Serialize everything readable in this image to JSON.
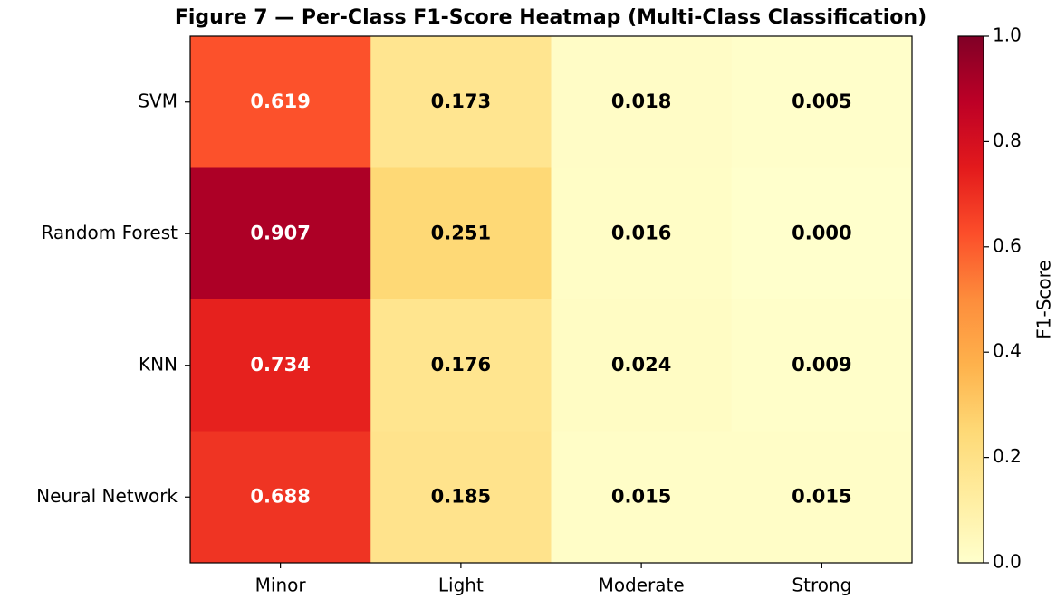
{
  "chart_data": {
    "type": "heatmap",
    "title": "Figure 7 — Per-Class F1-Score Heatmap (Multi-Class Classification)",
    "x_categories": [
      "Minor",
      "Light",
      "Moderate",
      "Strong"
    ],
    "y_categories": [
      "SVM",
      "Random Forest",
      "KNN",
      "Neural Network"
    ],
    "values": [
      [
        0.619,
        0.173,
        0.018,
        0.005
      ],
      [
        0.907,
        0.251,
        0.016,
        0
      ],
      [
        0.734,
        0.176,
        0.024,
        0.009
      ],
      [
        0.688,
        0.185,
        0.015,
        0.015
      ]
    ],
    "value_labels": [
      [
        "0.619",
        "0.173",
        "0.018",
        "0.005"
      ],
      [
        "0.907",
        "0.251",
        "0.016",
        "0.000"
      ],
      [
        "0.734",
        "0.176",
        "0.024",
        "0.009"
      ],
      [
        "0.688",
        "0.185",
        "0.015",
        "0.015"
      ]
    ],
    "colorbar_label": "F1-Score",
    "zlim": [
      0,
      1
    ],
    "zticks": [
      {
        "value": 0,
        "label": "0.0"
      },
      0.2,
      0.4,
      0.6,
      0.8,
      {
        "value": 1,
        "label": "1.0"
      }
    ],
    "colormap": [
      "#ffffcc",
      "#ffeda0",
      "#fed976",
      "#feb24c",
      "#fd8d3c",
      "#fc4e2a",
      "#e31a1c",
      "#bd0026",
      "#800026"
    ]
  }
}
